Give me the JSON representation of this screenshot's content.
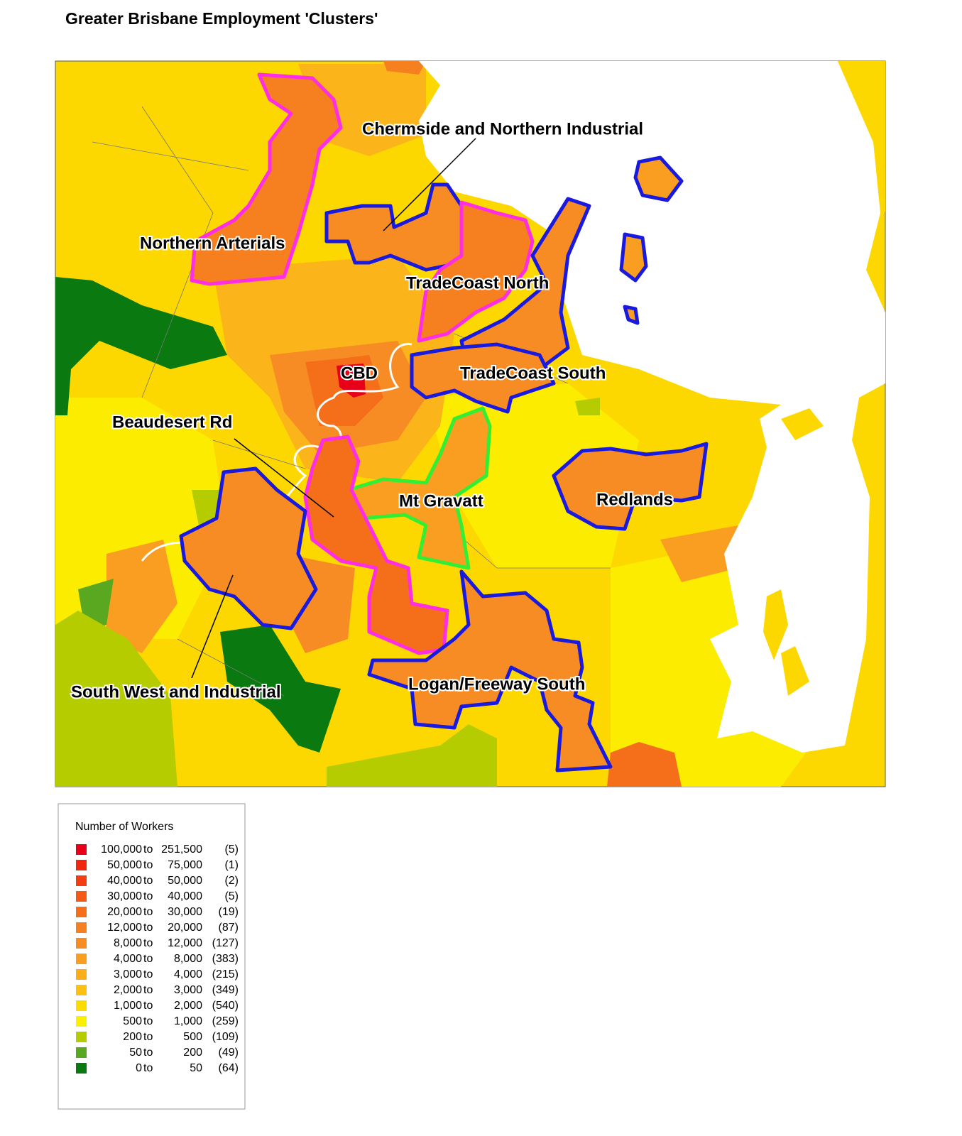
{
  "header": {
    "title": "Greater Brisbane Employment 'Clusters'"
  },
  "clusters": [
    {
      "label": "Chermside and Northern Industrial"
    },
    {
      "label": "Northern Arterials"
    },
    {
      "label": "TradeCoast North"
    },
    {
      "label": "CBD"
    },
    {
      "label": "TradeCoast South"
    },
    {
      "label": "Beaudesert Rd"
    },
    {
      "label": "Mt Gravatt"
    },
    {
      "label": "Redlands"
    },
    {
      "label": "South West and Industrial"
    },
    {
      "label": "Logan/Freeway South"
    }
  ],
  "legend": {
    "title": "Number of Workers",
    "range_word": "to",
    "items": [
      {
        "from": "100,000",
        "to": "251,500",
        "count": "(5)",
        "color": "#e8001a"
      },
      {
        "from": "50,000",
        "to": "75,000",
        "count": "(1)",
        "color": "#ef2810"
      },
      {
        "from": "40,000",
        "to": "50,000",
        "count": "(2)",
        "color": "#f23e12"
      },
      {
        "from": "30,000",
        "to": "40,000",
        "count": "(5)",
        "color": "#f45a16"
      },
      {
        "from": "20,000",
        "to": "30,000",
        "count": "(19)",
        "color": "#f56e1a"
      },
      {
        "from": "12,000",
        "to": "20,000",
        "count": "(87)",
        "color": "#f6801f"
      },
      {
        "from": "8,000",
        "to": "12,000",
        "count": "(127)",
        "color": "#f78c24"
      },
      {
        "from": "4,000",
        "to": "8,000",
        "count": "(383)",
        "color": "#f99e20"
      },
      {
        "from": "3,000",
        "to": "4,000",
        "count": "(215)",
        "color": "#fbae1a"
      },
      {
        "from": "2,000",
        "to": "3,000",
        "count": "(349)",
        "color": "#fcc012"
      },
      {
        "from": "1,000",
        "to": "2,000",
        "count": "(540)",
        "color": "#fcdc00"
      },
      {
        "from": "500",
        "to": "1,000",
        "count": "(259)",
        "color": "#fbf000"
      },
      {
        "from": "200",
        "to": "500",
        "count": "(109)",
        "color": "#b5cc00"
      },
      {
        "from": "50",
        "to": "200",
        "count": "(49)",
        "color": "#5aa820"
      },
      {
        "from": "0",
        "to": "50",
        "count": "(64)",
        "color": "#0a7a10"
      }
    ]
  }
}
